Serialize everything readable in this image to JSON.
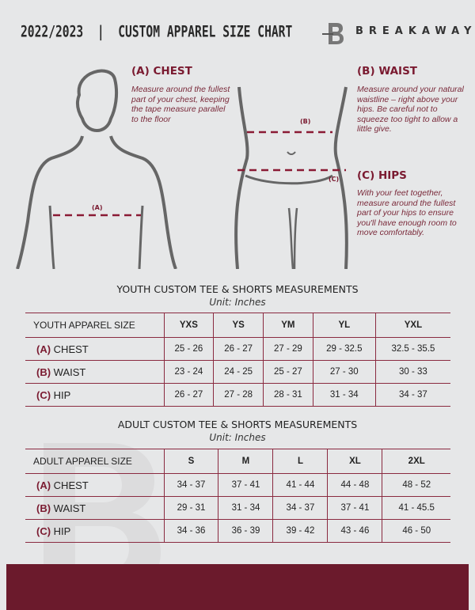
{
  "header": {
    "title": "2022/2023  |  CUSTOM APPAREL SIZE CHART",
    "brand": "BREAKAWAY"
  },
  "guide": {
    "chest": {
      "heading": "(A) CHEST",
      "text": "Measure around the fullest part of your chest, keeping the tape measure parallel to the floor",
      "marker": "(A)"
    },
    "waist": {
      "heading": "(B) WAIST",
      "text": "Measure around your natural waistline – right above your hips. Be careful not to squeeze too tight to allow a little give.",
      "marker": "(B)"
    },
    "hips": {
      "heading": "(C) HIPS",
      "text": "With your feet together, measure around the fullest part of your hips to ensure you'll have enough room to move comfortably.",
      "marker": "(C)"
    }
  },
  "youth": {
    "title": "YOUTH CUSTOM TEE & SHORTS MEASUREMENTS",
    "unit": "Unit: Inches",
    "headers": [
      "YOUTH APPAREL SIZE",
      "YXS",
      "YS",
      "YM",
      "YL",
      "YXL"
    ],
    "rows": [
      {
        "code": "(A)",
        "name": "CHEST",
        "values": [
          "25 - 26",
          "26 - 27",
          "27 - 29",
          "29 - 32.5",
          "32.5 - 35.5"
        ]
      },
      {
        "code": "(B)",
        "name": "WAIST",
        "values": [
          "23 - 24",
          "24 - 25",
          "25 - 27",
          "27 - 30",
          "30 - 33"
        ]
      },
      {
        "code": "(C)",
        "name": "HIP",
        "values": [
          "26 - 27",
          "27 - 28",
          "28 - 31",
          "31 - 34",
          "34 - 37"
        ]
      }
    ]
  },
  "adult": {
    "title": "ADULT CUSTOM TEE & SHORTS MEASUREMENTS",
    "unit": "Unit: Inches",
    "headers": [
      "ADULT APPAREL SIZE",
      "S",
      "M",
      "L",
      "XL",
      "2XL"
    ],
    "rows": [
      {
        "code": "(A)",
        "name": "CHEST",
        "values": [
          "34 - 37",
          "37 - 41",
          "41 - 44",
          "44 - 48",
          "48 - 52"
        ]
      },
      {
        "code": "(B)",
        "name": "WAIST",
        "values": [
          "29 - 31",
          "31 - 34",
          "34 - 37",
          "37 - 41",
          "41 - 45.5"
        ]
      },
      {
        "code": "(C)",
        "name": "HIP",
        "values": [
          "34 - 36",
          "36 - 39",
          "39 - 42",
          "43 - 46",
          "46 - 50"
        ]
      }
    ]
  },
  "colors": {
    "accent": "#6b1a2c",
    "background": "#e6e7e8"
  }
}
